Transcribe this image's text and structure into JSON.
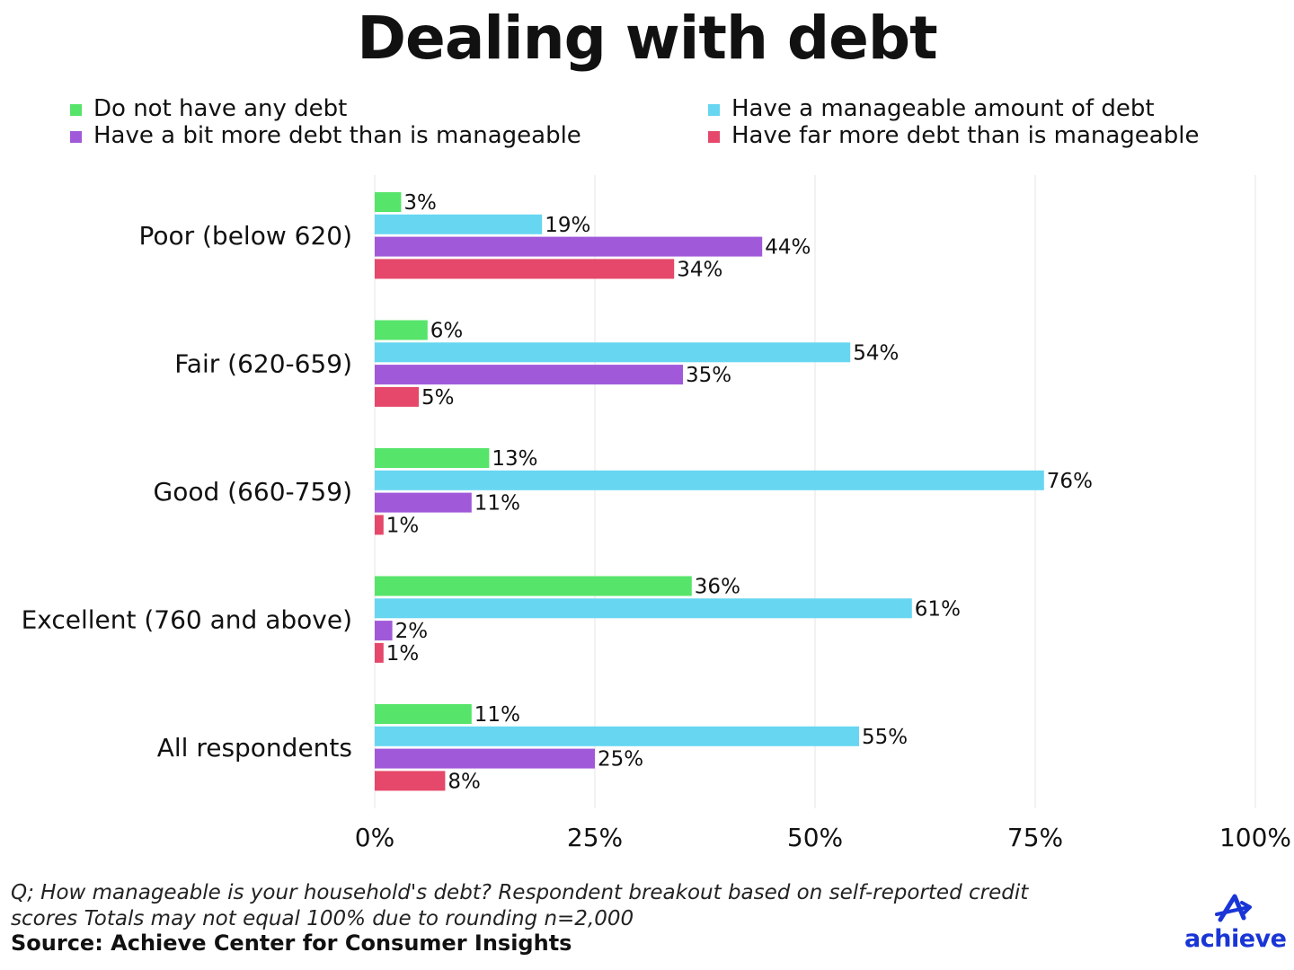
{
  "chart_data": {
    "type": "bar",
    "orientation": "horizontal",
    "title": "Dealing with debt",
    "categories": [
      "Poor (below 620)",
      "Fair (620-659)",
      "Good (660-759)",
      "Excellent (760 and above)",
      "All respondents"
    ],
    "series": [
      {
        "name": "Do not have any debt",
        "color": "#56e46a",
        "values": [
          3,
          6,
          13,
          36,
          11
        ]
      },
      {
        "name": "Have a manageable amount of debt",
        "color": "#67d6f1",
        "values": [
          19,
          54,
          76,
          61,
          55
        ]
      },
      {
        "name": "Have a bit more debt than is manageable",
        "color": "#a05ad9",
        "values": [
          44,
          35,
          11,
          2,
          25
        ]
      },
      {
        "name": "Have far more debt than is manageable",
        "color": "#e5486a",
        "values": [
          34,
          5,
          1,
          1,
          8
        ]
      }
    ],
    "value_suffix": "%",
    "xlim": [
      0,
      100
    ],
    "xticks": [
      "0%",
      "25%",
      "50%",
      "75%",
      "100%"
    ],
    "grid": true,
    "legend_placement": "top"
  },
  "footer": {
    "note_line1": "Q; How manageable is your household's debt? Respondent breakout based on self-reported credit",
    "note_line2": "scores Totals may not equal 100% due to rounding n=2,000",
    "source": "Source: Achieve Center for Consumer Insights"
  },
  "logo": {
    "text": "achieve",
    "color": "#1a35d6",
    "icon": "achieve-arrow-icon"
  }
}
